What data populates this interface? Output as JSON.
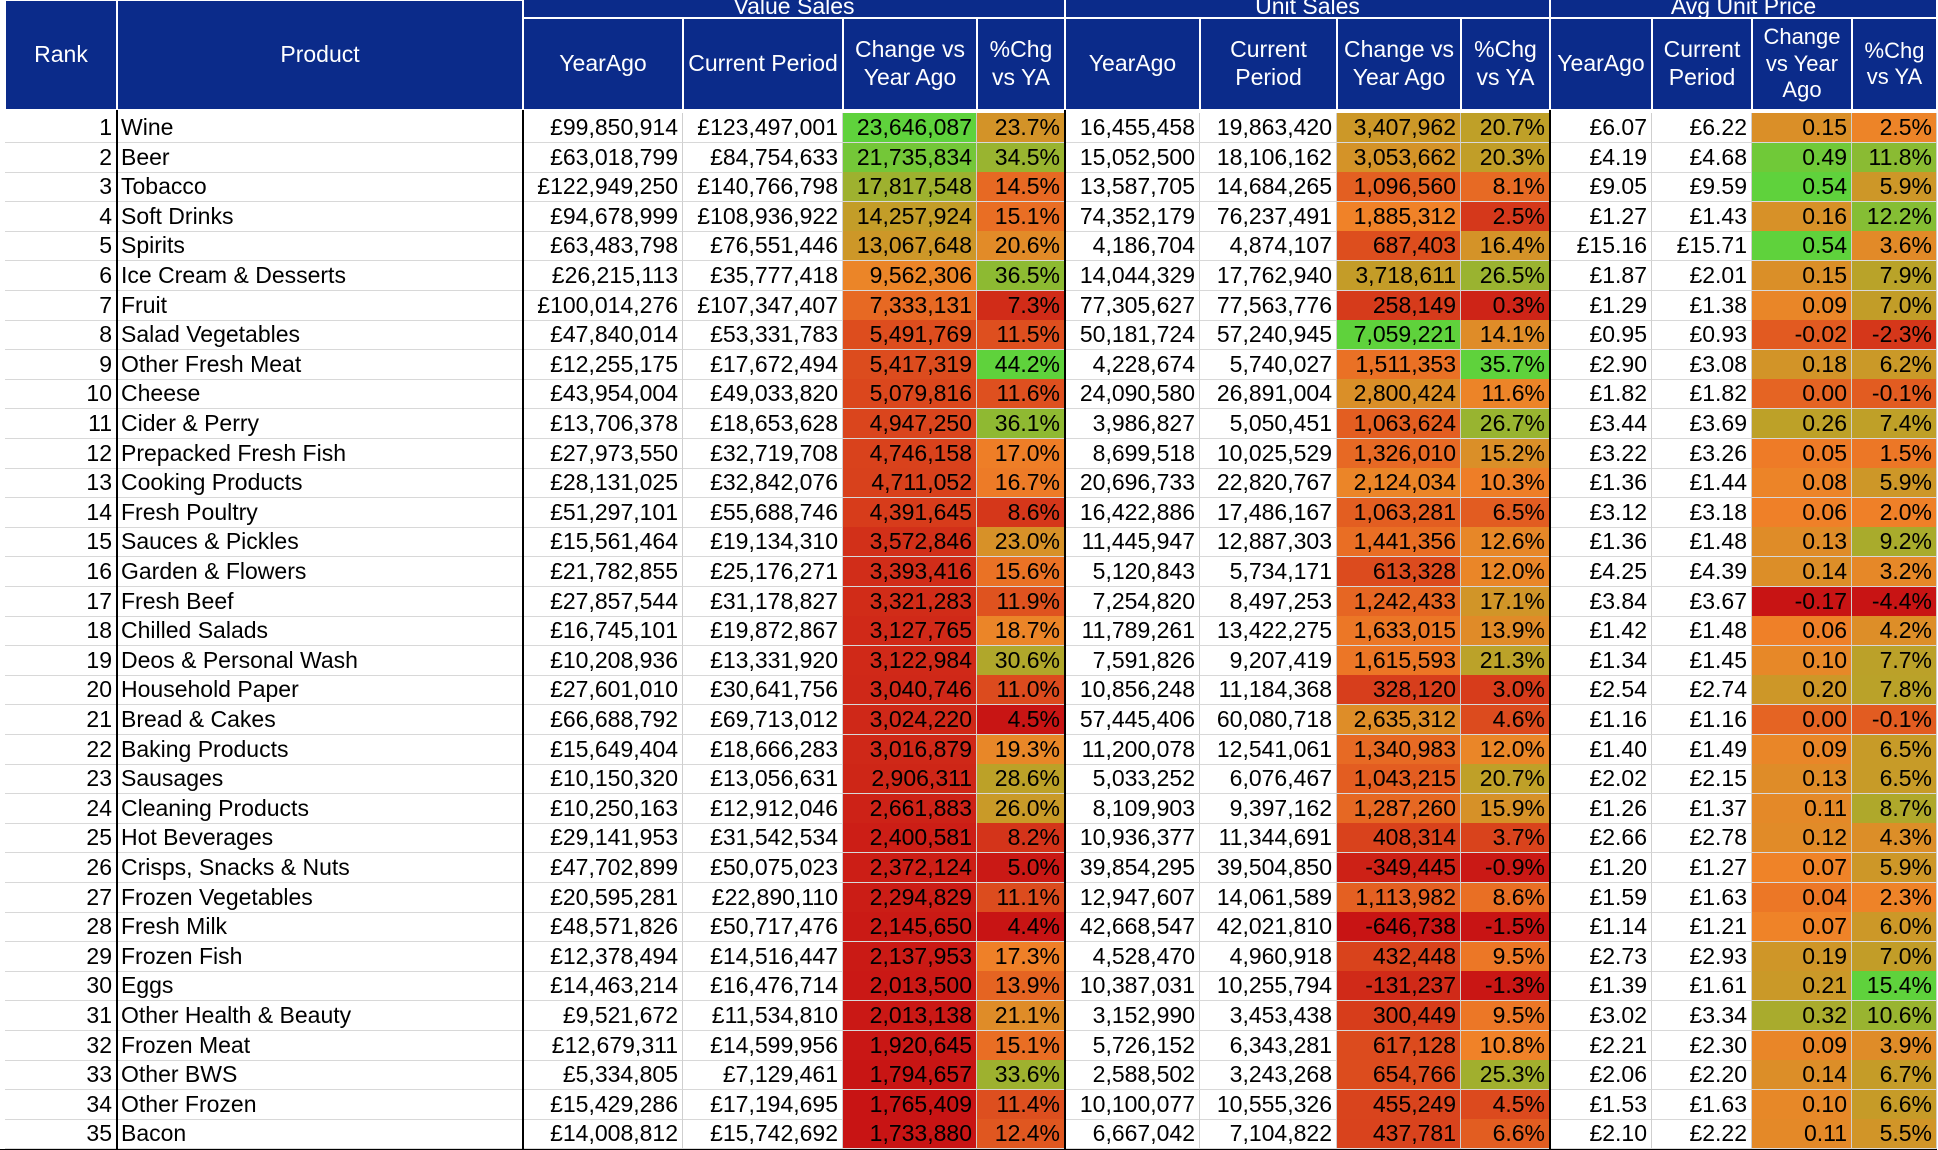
{
  "header": {
    "groups": [
      "Value Sales",
      "Unit Sales",
      "Avg Unit Price"
    ],
    "rank": "Rank",
    "product": "Product",
    "value_cols": [
      "YearAgo",
      "Current Period",
      "Change vs Year Ago",
      "%Chg vs YA"
    ],
    "unit_cols": [
      "YearAgo",
      "Current Period",
      "Change vs Year Ago",
      "%Chg vs YA"
    ],
    "price_cols": [
      "YearAgo",
      "Current Period",
      "Change vs Year Ago",
      "%Chg vs YA"
    ]
  },
  "rows": [
    [
      "1",
      "Wine",
      "£99,850,914",
      "£123,497,001",
      "23,646,087",
      "23.7%",
      "16,455,458",
      "19,863,420",
      "3,407,962",
      "20.7%",
      "£6.07",
      "£6.22",
      "0.15",
      "2.5%"
    ],
    [
      "2",
      "Beer",
      "£63,018,799",
      "£84,754,633",
      "21,735,834",
      "34.5%",
      "15,052,500",
      "18,106,162",
      "3,053,662",
      "20.3%",
      "£4.19",
      "£4.68",
      "0.49",
      "11.8%"
    ],
    [
      "3",
      "Tobacco",
      "£122,949,250",
      "£140,766,798",
      "17,817,548",
      "14.5%",
      "13,587,705",
      "14,684,265",
      "1,096,560",
      "8.1%",
      "£9.05",
      "£9.59",
      "0.54",
      "5.9%"
    ],
    [
      "4",
      "Soft Drinks",
      "£94,678,999",
      "£108,936,922",
      "14,257,924",
      "15.1%",
      "74,352,179",
      "76,237,491",
      "1,885,312",
      "2.5%",
      "£1.27",
      "£1.43",
      "0.16",
      "12.2%"
    ],
    [
      "5",
      "Spirits",
      "£63,483,798",
      "£76,551,446",
      "13,067,648",
      "20.6%",
      "4,186,704",
      "4,874,107",
      "687,403",
      "16.4%",
      "£15.16",
      "£15.71",
      "0.54",
      "3.6%"
    ],
    [
      "6",
      "Ice Cream & Desserts",
      "£26,215,113",
      "£35,777,418",
      "9,562,306",
      "36.5%",
      "14,044,329",
      "17,762,940",
      "3,718,611",
      "26.5%",
      "£1.87",
      "£2.01",
      "0.15",
      "7.9%"
    ],
    [
      "7",
      "Fruit",
      "£100,014,276",
      "£107,347,407",
      "7,333,131",
      "7.3%",
      "77,305,627",
      "77,563,776",
      "258,149",
      "0.3%",
      "£1.29",
      "£1.38",
      "0.09",
      "7.0%"
    ],
    [
      "8",
      "Salad Vegetables",
      "£47,840,014",
      "£53,331,783",
      "5,491,769",
      "11.5%",
      "50,181,724",
      "57,240,945",
      "7,059,221",
      "14.1%",
      "£0.95",
      "£0.93",
      "-0.02",
      "-2.3%"
    ],
    [
      "9",
      "Other Fresh Meat",
      "£12,255,175",
      "£17,672,494",
      "5,417,319",
      "44.2%",
      "4,228,674",
      "5,740,027",
      "1,511,353",
      "35.7%",
      "£2.90",
      "£3.08",
      "0.18",
      "6.2%"
    ],
    [
      "10",
      "Cheese",
      "£43,954,004",
      "£49,033,820",
      "5,079,816",
      "11.6%",
      "24,090,580",
      "26,891,004",
      "2,800,424",
      "11.6%",
      "£1.82",
      "£1.82",
      "0.00",
      "-0.1%"
    ],
    [
      "11",
      "Cider & Perry",
      "£13,706,378",
      "£18,653,628",
      "4,947,250",
      "36.1%",
      "3,986,827",
      "5,050,451",
      "1,063,624",
      "26.7%",
      "£3.44",
      "£3.69",
      "0.26",
      "7.4%"
    ],
    [
      "12",
      "Prepacked Fresh Fish",
      "£27,973,550",
      "£32,719,708",
      "4,746,158",
      "17.0%",
      "8,699,518",
      "10,025,529",
      "1,326,010",
      "15.2%",
      "£3.22",
      "£3.26",
      "0.05",
      "1.5%"
    ],
    [
      "13",
      "Cooking Products",
      "£28,131,025",
      "£32,842,076",
      "4,711,052",
      "16.7%",
      "20,696,733",
      "22,820,767",
      "2,124,034",
      "10.3%",
      "£1.36",
      "£1.44",
      "0.08",
      "5.9%"
    ],
    [
      "14",
      "Fresh Poultry",
      "£51,297,101",
      "£55,688,746",
      "4,391,645",
      "8.6%",
      "16,422,886",
      "17,486,167",
      "1,063,281",
      "6.5%",
      "£3.12",
      "£3.18",
      "0.06",
      "2.0%"
    ],
    [
      "15",
      "Sauces & Pickles",
      "£15,561,464",
      "£19,134,310",
      "3,572,846",
      "23.0%",
      "11,445,947",
      "12,887,303",
      "1,441,356",
      "12.6%",
      "£1.36",
      "£1.48",
      "0.13",
      "9.2%"
    ],
    [
      "16",
      "Garden & Flowers",
      "£21,782,855",
      "£25,176,271",
      "3,393,416",
      "15.6%",
      "5,120,843",
      "5,734,171",
      "613,328",
      "12.0%",
      "£4.25",
      "£4.39",
      "0.14",
      "3.2%"
    ],
    [
      "17",
      "Fresh Beef",
      "£27,857,544",
      "£31,178,827",
      "3,321,283",
      "11.9%",
      "7,254,820",
      "8,497,253",
      "1,242,433",
      "17.1%",
      "£3.84",
      "£3.67",
      "-0.17",
      "-4.4%"
    ],
    [
      "18",
      "Chilled Salads",
      "£16,745,101",
      "£19,872,867",
      "3,127,765",
      "18.7%",
      "11,789,261",
      "13,422,275",
      "1,633,015",
      "13.9%",
      "£1.42",
      "£1.48",
      "0.06",
      "4.2%"
    ],
    [
      "19",
      "Deos & Personal Wash",
      "£10,208,936",
      "£13,331,920",
      "3,122,984",
      "30.6%",
      "7,591,826",
      "9,207,419",
      "1,615,593",
      "21.3%",
      "£1.34",
      "£1.45",
      "0.10",
      "7.7%"
    ],
    [
      "20",
      "Household Paper",
      "£27,601,010",
      "£30,641,756",
      "3,040,746",
      "11.0%",
      "10,856,248",
      "11,184,368",
      "328,120",
      "3.0%",
      "£2.54",
      "£2.74",
      "0.20",
      "7.8%"
    ],
    [
      "21",
      "Bread & Cakes",
      "£66,688,792",
      "£69,713,012",
      "3,024,220",
      "4.5%",
      "57,445,406",
      "60,080,718",
      "2,635,312",
      "4.6%",
      "£1.16",
      "£1.16",
      "0.00",
      "-0.1%"
    ],
    [
      "22",
      "Baking Products",
      "£15,649,404",
      "£18,666,283",
      "3,016,879",
      "19.3%",
      "11,200,078",
      "12,541,061",
      "1,340,983",
      "12.0%",
      "£1.40",
      "£1.49",
      "0.09",
      "6.5%"
    ],
    [
      "23",
      "Sausages",
      "£10,150,320",
      "£13,056,631",
      "2,906,311",
      "28.6%",
      "5,033,252",
      "6,076,467",
      "1,043,215",
      "20.7%",
      "£2.02",
      "£2.15",
      "0.13",
      "6.5%"
    ],
    [
      "24",
      "Cleaning Products",
      "£10,250,163",
      "£12,912,046",
      "2,661,883",
      "26.0%",
      "8,109,903",
      "9,397,162",
      "1,287,260",
      "15.9%",
      "£1.26",
      "£1.37",
      "0.11",
      "8.7%"
    ],
    [
      "25",
      "Hot Beverages",
      "£29,141,953",
      "£31,542,534",
      "2,400,581",
      "8.2%",
      "10,936,377",
      "11,344,691",
      "408,314",
      "3.7%",
      "£2.66",
      "£2.78",
      "0.12",
      "4.3%"
    ],
    [
      "26",
      "Crisps, Snacks & Nuts",
      "£47,702,899",
      "£50,075,023",
      "2,372,124",
      "5.0%",
      "39,854,295",
      "39,504,850",
      "-349,445",
      "-0.9%",
      "£1.20",
      "£1.27",
      "0.07",
      "5.9%"
    ],
    [
      "27",
      "Frozen Vegetables",
      "£20,595,281",
      "£22,890,110",
      "2,294,829",
      "11.1%",
      "12,947,607",
      "14,061,589",
      "1,113,982",
      "8.6%",
      "£1.59",
      "£1.63",
      "0.04",
      "2.3%"
    ],
    [
      "28",
      "Fresh Milk",
      "£48,571,826",
      "£50,717,476",
      "2,145,650",
      "4.4%",
      "42,668,547",
      "42,021,810",
      "-646,738",
      "-1.5%",
      "£1.14",
      "£1.21",
      "0.07",
      "6.0%"
    ],
    [
      "29",
      "Frozen Fish",
      "£12,378,494",
      "£14,516,447",
      "2,137,953",
      "17.3%",
      "4,528,470",
      "4,960,918",
      "432,448",
      "9.5%",
      "£2.73",
      "£2.93",
      "0.19",
      "7.0%"
    ],
    [
      "30",
      "Eggs",
      "£14,463,214",
      "£16,476,714",
      "2,013,500",
      "13.9%",
      "10,387,031",
      "10,255,794",
      "-131,237",
      "-1.3%",
      "£1.39",
      "£1.61",
      "0.21",
      "15.4%"
    ],
    [
      "31",
      "Other Health & Beauty",
      "£9,521,672",
      "£11,534,810",
      "2,013,138",
      "21.1%",
      "3,152,990",
      "3,453,438",
      "300,449",
      "9.5%",
      "£3.02",
      "£3.34",
      "0.32",
      "10.6%"
    ],
    [
      "32",
      "Frozen Meat",
      "£12,679,311",
      "£14,599,956",
      "1,920,645",
      "15.1%",
      "5,726,152",
      "6,343,281",
      "617,128",
      "10.8%",
      "£2.21",
      "£2.30",
      "0.09",
      "3.9%"
    ],
    [
      "33",
      "Other BWS",
      "£5,334,805",
      "£7,129,461",
      "1,794,657",
      "33.6%",
      "2,588,502",
      "3,243,268",
      "654,766",
      "25.3%",
      "£2.06",
      "£2.20",
      "0.14",
      "6.7%"
    ],
    [
      "34",
      "Other Frozen",
      "£15,429,286",
      "£17,194,695",
      "1,765,409",
      "11.4%",
      "10,100,077",
      "10,555,326",
      "455,249",
      "4.5%",
      "£1.53",
      "£1.63",
      "0.10",
      "6.6%"
    ],
    [
      "35",
      "Bacon",
      "£14,008,812",
      "£15,742,692",
      "1,733,880",
      "12.4%",
      "6,667,042",
      "7,104,822",
      "437,781",
      "6.6%",
      "£2.10",
      "£2.22",
      "0.11",
      "5.5%"
    ]
  ]
}
